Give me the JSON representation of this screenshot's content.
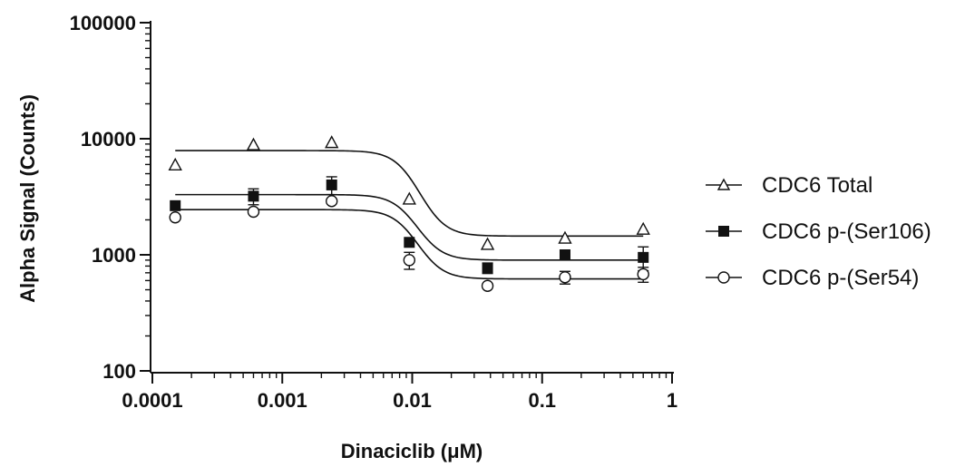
{
  "chart_data": {
    "type": "scatter",
    "xlabel": "Dinaciclib (μM)",
    "ylabel": "Alpha Signal (Counts)",
    "xscale": "log",
    "yscale": "log",
    "xlim": [
      0.0001,
      1
    ],
    "ylim": [
      100,
      100000
    ],
    "xticks": [
      {
        "value": 0.0001,
        "label": "0.0001"
      },
      {
        "value": 0.001,
        "label": "0.001"
      },
      {
        "value": 0.01,
        "label": "0.01"
      },
      {
        "value": 0.1,
        "label": "0.1"
      },
      {
        "value": 1,
        "label": "1"
      }
    ],
    "yticks": [
      {
        "value": 100,
        "label": "100"
      },
      {
        "value": 1000,
        "label": "1000"
      },
      {
        "value": 10000,
        "label": "10000"
      },
      {
        "value": 100000,
        "label": "100000"
      }
    ],
    "grid": false,
    "legend_position": "right",
    "x": [
      0.00015,
      0.0006,
      0.0024,
      0.0095,
      0.038,
      0.15,
      0.6
    ],
    "series": [
      {
        "name": "CDC6 Total",
        "marker": "open-triangle",
        "values": [
          5900,
          8800,
          9200,
          3000,
          1220,
          1380,
          1650
        ],
        "errors": [
          0,
          0,
          0,
          0,
          0,
          0,
          0
        ],
        "fit": {
          "top": 7900,
          "bottom": 1450,
          "ic50": 0.0095,
          "hill": -4.5
        }
      },
      {
        "name": "CDC6 p-(Ser106)",
        "marker": "filled-square",
        "values": [
          2650,
          3200,
          4000,
          1280,
          770,
          1000,
          950
        ],
        "errors": [
          0,
          500,
          700,
          0,
          80,
          0,
          220
        ],
        "fit": {
          "top": 3300,
          "bottom": 900,
          "ic50": 0.0095,
          "hill": -4.5
        }
      },
      {
        "name": "CDC6 p-(Ser54)",
        "marker": "open-circle",
        "values": [
          2100,
          2350,
          2900,
          900,
          540,
          640,
          680
        ],
        "errors": [
          0,
          0,
          0,
          150,
          0,
          80,
          100
        ],
        "fit": {
          "top": 2450,
          "bottom": 620,
          "ic50": 0.0095,
          "hill": -4.5
        }
      }
    ]
  }
}
